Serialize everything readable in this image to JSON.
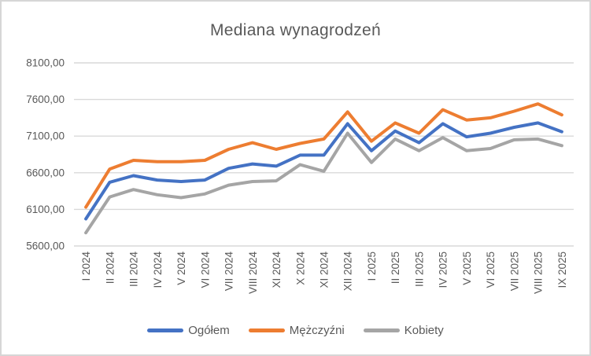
{
  "chart_data": {
    "type": "line",
    "title": "Mediana wynagrodzeń",
    "categories": [
      "I 2024",
      "II 2024",
      "III 2024",
      "IV 2024",
      "V 2024",
      "VI 2024",
      "VII 2024",
      "VIII 2024",
      "XI 2024",
      "X 2024",
      "XI 2024",
      "XII 2024",
      "I 2025",
      "II 2025",
      "III 2025",
      "IV 2025",
      "V 2025",
      "VI 2025",
      "VII 2025",
      "VIII 2025",
      "IX 2025"
    ],
    "series": [
      {
        "name": "Ogółem",
        "color": "#4472C4",
        "values": [
          5970,
          6470,
          6560,
          6500,
          6480,
          6500,
          6660,
          6720,
          6690,
          6840,
          6840,
          7270,
          6900,
          7170,
          7010,
          7270,
          7090,
          7140,
          7220,
          7280,
          7160
        ]
      },
      {
        "name": "Mężczyźni",
        "color": "#ED7D31",
        "values": [
          6130,
          6650,
          6770,
          6750,
          6750,
          6770,
          6920,
          7010,
          6920,
          7000,
          7060,
          7430,
          7030,
          7280,
          7140,
          7460,
          7320,
          7350,
          7440,
          7540,
          7390
        ]
      },
      {
        "name": "Kobiety",
        "color": "#A5A5A5",
        "values": [
          5780,
          6270,
          6370,
          6300,
          6260,
          6310,
          6430,
          6480,
          6490,
          6710,
          6620,
          7140,
          6740,
          7060,
          6900,
          7080,
          6900,
          6930,
          7050,
          7060,
          6970
        ]
      }
    ],
    "ylim": [
      5600,
      8100
    ],
    "yticks": [
      5600,
      6100,
      6600,
      7100,
      7600,
      8100
    ],
    "ytick_labels": [
      "5600,00",
      "6100,00",
      "6600,00",
      "7100,00",
      "7600,00",
      "8100,00"
    ],
    "grid": true,
    "legend_position": "bottom",
    "colors": {
      "axis_text": "#595959",
      "title_text": "#595959",
      "gridline": "#d9d9d9",
      "frame_border": "#d6d6d6",
      "background": "#ffffff"
    }
  }
}
